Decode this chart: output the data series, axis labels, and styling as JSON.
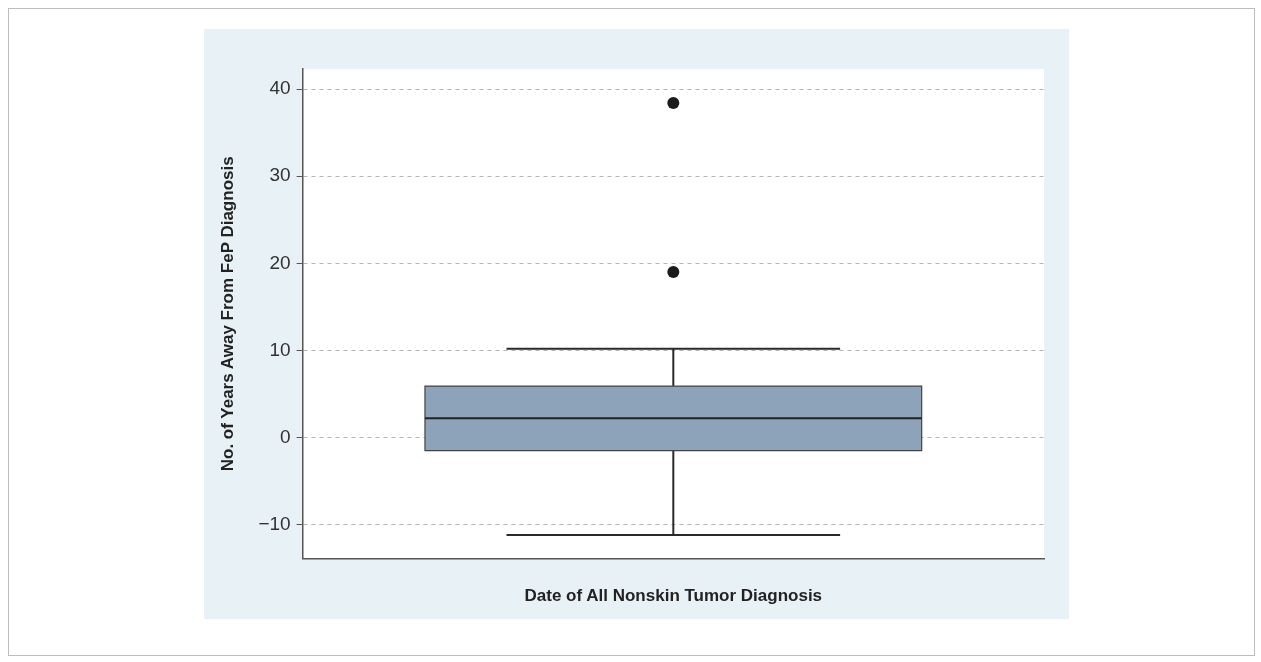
{
  "chart_data": {
    "type": "box",
    "categories": [
      null
    ],
    "xlabel": "Date of All Nonskin Tumor Diagnosis",
    "ylabel": "No. of Years Away From FeP Diagnosis",
    "color": "#8ca3ba",
    "boxes": [
      {
        "low": -11.2,
        "q1": -1.5,
        "median": 2.2,
        "q3": 5.9,
        "high": 10.2,
        "outliers": [
          19.0,
          38.4
        ]
      }
    ],
    "ylim": [
      -13.9,
      42.3
    ],
    "yticks": [
      {
        "value": -10,
        "label": "−10"
      },
      0,
      10,
      20,
      30,
      40
    ],
    "grid": "y",
    "tick_labels": "y",
    "legend": false
  }
}
